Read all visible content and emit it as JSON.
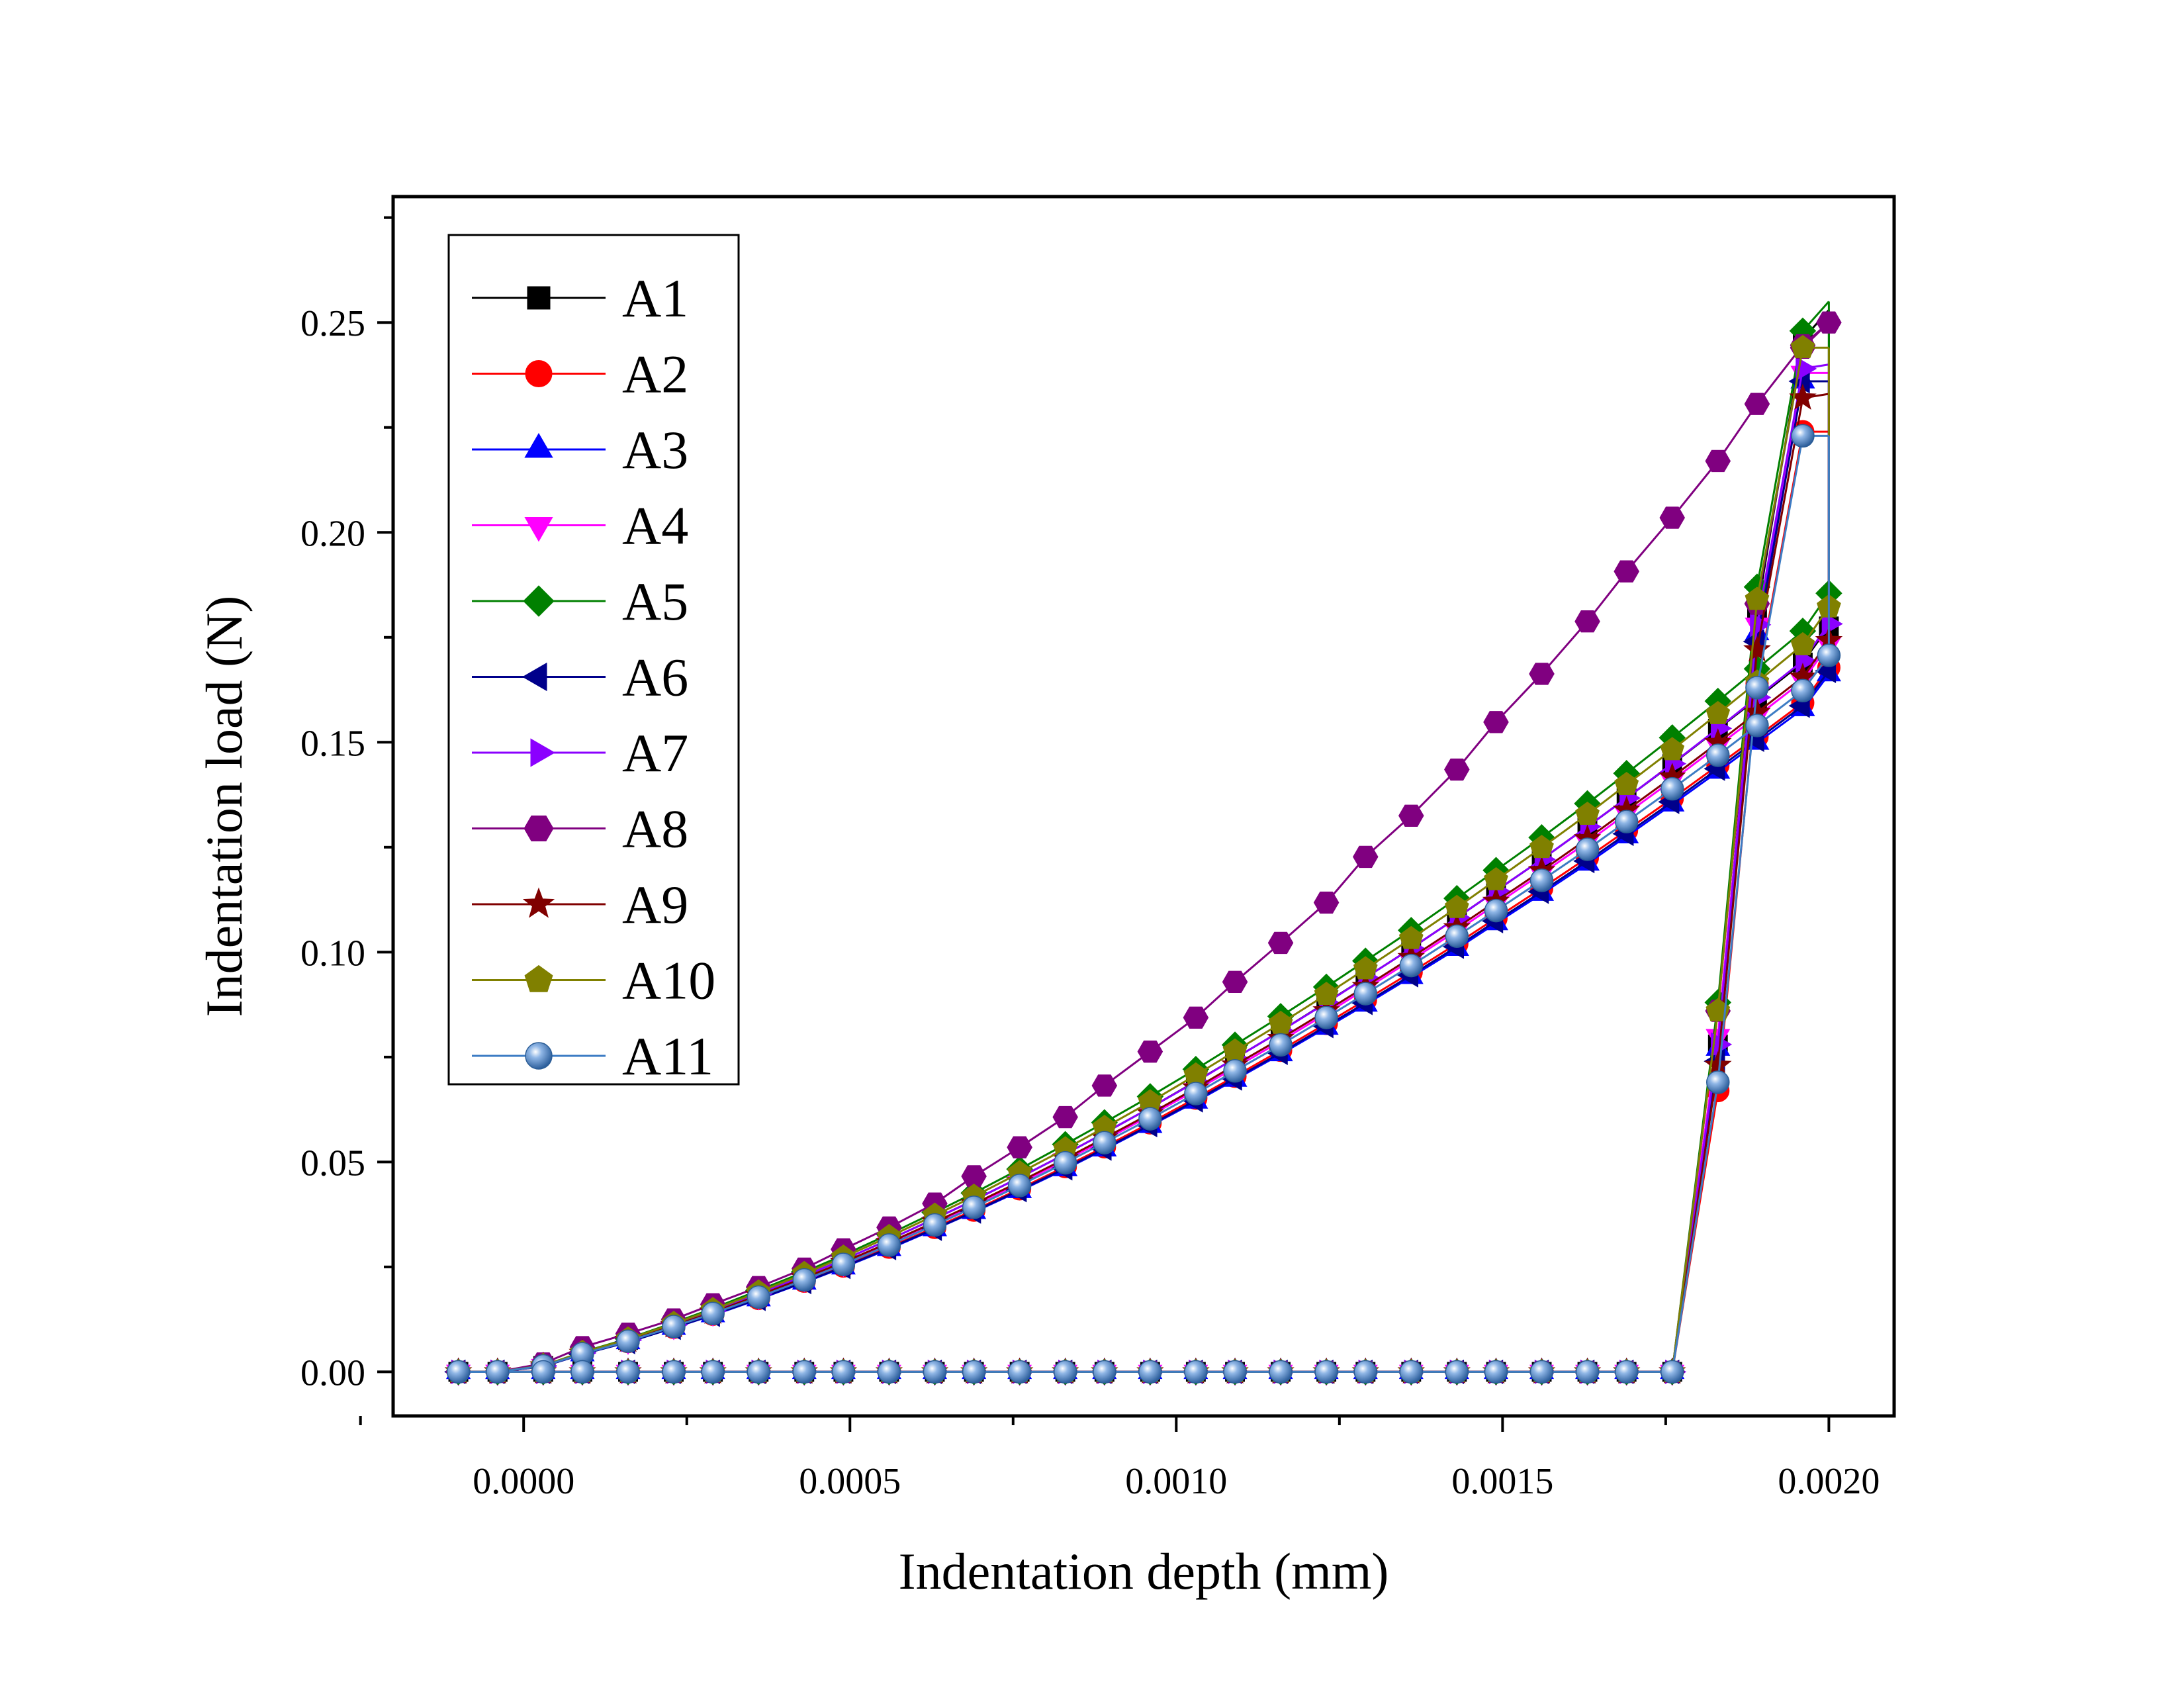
{
  "chart_data": {
    "type": "line",
    "xlabel": "Indentation depth (mm)",
    "ylabel": "Indentation load (N)",
    "xlim": [
      -0.0002,
      0.0021
    ],
    "ylim": [
      -0.0105,
      0.28
    ],
    "xticks": [
      0.0,
      0.0005,
      0.001,
      0.0015,
      0.002
    ],
    "xtick_labels": [
      "0.0000",
      "0.0005",
      "0.0010",
      "0.0015",
      "0.0020"
    ],
    "yticks": [
      0.0,
      0.05,
      0.1,
      0.15,
      0.2,
      0.25
    ],
    "ytick_labels": [
      "0.00",
      "0.05",
      "0.10",
      "0.15",
      "0.20",
      "0.25"
    ],
    "grid": false,
    "legend_position": "top-left",
    "loading_x": [
      -0.0001,
      -4e-05,
      3e-05,
      9e-05,
      0.00016,
      0.00023,
      0.00029,
      0.00036,
      0.00043,
      0.00049,
      0.00056,
      0.00063,
      0.00069,
      0.00076,
      0.00083,
      0.00089,
      0.00096,
      0.00103,
      0.00109,
      0.00116,
      0.00123,
      0.00129,
      0.00136,
      0.00143,
      0.00149,
      0.00156,
      0.00163,
      0.00169,
      0.00176,
      0.00183,
      0.00189,
      0.00196,
      0.002
    ],
    "series": [
      {
        "name": "A1",
        "color": "#000000",
        "marker": "square",
        "peak_load": 0.253,
        "loading_y": [
          0,
          0,
          0.0014,
          0.0045,
          0.0076,
          0.0113,
          0.0145,
          0.0186,
          0.0229,
          0.0267,
          0.0315,
          0.0365,
          0.0409,
          0.0463,
          0.0519,
          0.0569,
          0.0629,
          0.0692,
          0.0747,
          0.0812,
          0.088,
          0.0939,
          0.1009,
          0.1082,
          0.1146,
          0.1221,
          0.1299,
          0.1367,
          0.1448,
          0.1532,
          0.1604,
          0.169,
          0.1776
        ],
        "unloading_y": [
          0,
          0,
          0,
          0,
          0,
          0,
          0,
          0,
          0,
          0,
          0,
          0,
          0,
          0,
          0,
          0,
          0,
          0,
          0,
          0,
          0,
          0,
          0,
          0,
          0,
          0,
          0,
          0,
          0,
          0.078,
          0.181,
          0.246
        ]
      },
      {
        "name": "A2",
        "color": "#ff0000",
        "marker": "circle",
        "peak_load": 0.224,
        "loading_y": [
          0,
          0,
          0.0013,
          0.0043,
          0.0072,
          0.0106,
          0.0137,
          0.0175,
          0.0216,
          0.0252,
          0.0297,
          0.0344,
          0.0385,
          0.0436,
          0.0489,
          0.0536,
          0.0593,
          0.0652,
          0.0704,
          0.0766,
          0.083,
          0.0886,
          0.0952,
          0.102,
          0.1081,
          0.1152,
          0.1225,
          0.129,
          0.1366,
          0.1445,
          0.1513,
          0.1594,
          0.1678
        ],
        "unloading_y": [
          0,
          0,
          0,
          0,
          0,
          0,
          0,
          0,
          0,
          0,
          0,
          0,
          0,
          0,
          0,
          0,
          0,
          0,
          0,
          0,
          0,
          0,
          0,
          0,
          0,
          0,
          0,
          0,
          0,
          0.067,
          0.164,
          0.224
        ]
      },
      {
        "name": "A3",
        "color": "#0000ff",
        "marker": "triangle-up",
        "peak_load": 0.236,
        "loading_y": [
          0,
          0,
          0.0013,
          0.0042,
          0.0071,
          0.0105,
          0.0135,
          0.0173,
          0.0213,
          0.0249,
          0.0293,
          0.034,
          0.0381,
          0.0431,
          0.0483,
          0.053,
          0.0586,
          0.0644,
          0.0696,
          0.0757,
          0.082,
          0.0875,
          0.0941,
          0.1008,
          0.1069,
          0.1139,
          0.1211,
          0.1276,
          0.1352,
          0.143,
          0.1499,
          0.1579,
          0.1662
        ],
        "unloading_y": [
          0,
          0,
          0,
          0,
          0,
          0,
          0,
          0,
          0,
          0,
          0,
          0,
          0,
          0,
          0,
          0,
          0,
          0,
          0,
          0,
          0,
          0,
          0,
          0,
          0,
          0,
          0,
          0,
          0,
          0.077,
          0.176,
          0.236
        ]
      },
      {
        "name": "A4",
        "color": "#ff00ff",
        "marker": "triangle-down",
        "peak_load": 0.238,
        "loading_y": [
          0,
          0,
          0.0014,
          0.0044,
          0.0074,
          0.0109,
          0.0141,
          0.018,
          0.0222,
          0.0259,
          0.0306,
          0.0354,
          0.0397,
          0.0449,
          0.0504,
          0.0552,
          0.0611,
          0.0671,
          0.0725,
          0.0788,
          0.0854,
          0.0912,
          0.0981,
          0.1051,
          0.1114,
          0.1187,
          0.1262,
          0.133,
          0.1409,
          0.1491,
          0.1562,
          0.1646,
          0.1733
        ],
        "unloading_y": [
          0,
          0,
          0,
          0,
          0,
          0,
          0,
          0,
          0,
          0,
          0,
          0,
          0,
          0,
          0,
          0,
          0,
          0,
          0,
          0,
          0,
          0,
          0,
          0,
          0,
          0,
          0,
          0,
          0,
          0.08,
          0.178,
          0.238
        ]
      },
      {
        "name": "A5",
        "color": "#008000",
        "marker": "diamond",
        "peak_load": 0.255,
        "loading_y": [
          0,
          0,
          0.0015,
          0.0047,
          0.0079,
          0.0117,
          0.0151,
          0.0194,
          0.0238,
          0.0278,
          0.0328,
          0.038,
          0.0426,
          0.0483,
          0.0542,
          0.0594,
          0.0656,
          0.0721,
          0.0779,
          0.0847,
          0.0917,
          0.0979,
          0.1052,
          0.1128,
          0.1195,
          0.1273,
          0.1354,
          0.1426,
          0.1511,
          0.1598,
          0.1675,
          0.1765,
          0.1855
        ],
        "unloading_y": [
          0,
          0,
          0,
          0,
          0,
          0,
          0,
          0,
          0,
          0,
          0,
          0,
          0,
          0,
          0,
          0,
          0,
          0,
          0,
          0,
          0,
          0,
          0,
          0,
          0,
          0,
          0,
          0,
          0,
          0.088,
          0.187,
          0.248
        ]
      },
      {
        "name": "A6",
        "color": "#00008b",
        "marker": "triangle-left",
        "peak_load": 0.236,
        "loading_y": [
          0,
          0,
          0.0013,
          0.0042,
          0.0071,
          0.0105,
          0.0136,
          0.0174,
          0.0214,
          0.025,
          0.0295,
          0.0341,
          0.0382,
          0.0433,
          0.0485,
          0.0532,
          0.0588,
          0.0647,
          0.0699,
          0.076,
          0.0824,
          0.0879,
          0.0945,
          0.1013,
          0.1074,
          0.1144,
          0.1217,
          0.1282,
          0.1358,
          0.1437,
          0.1506,
          0.1587,
          0.167
        ],
        "unloading_y": [
          0,
          0,
          0,
          0,
          0,
          0,
          0,
          0,
          0,
          0,
          0,
          0,
          0,
          0,
          0,
          0,
          0,
          0,
          0,
          0,
          0,
          0,
          0,
          0,
          0,
          0,
          0,
          0,
          0,
          0.074,
          0.174,
          0.236
        ]
      },
      {
        "name": "A7",
        "color": "#8b00ff",
        "marker": "triangle-right",
        "peak_load": 0.24,
        "loading_y": [
          0,
          0,
          0.0014,
          0.0045,
          0.0076,
          0.0112,
          0.0145,
          0.0186,
          0.0229,
          0.0267,
          0.0315,
          0.0365,
          0.0409,
          0.0463,
          0.0519,
          0.0569,
          0.0629,
          0.0691,
          0.0747,
          0.0812,
          0.0879,
          0.0939,
          0.1009,
          0.1082,
          0.1146,
          0.1221,
          0.1299,
          0.1367,
          0.1449,
          0.1533,
          0.1607,
          0.1694,
          0.1782
        ],
        "unloading_y": [
          0,
          0,
          0,
          0,
          0,
          0,
          0,
          0,
          0,
          0,
          0,
          0,
          0,
          0,
          0,
          0,
          0,
          0,
          0,
          0,
          0,
          0,
          0,
          0,
          0,
          0,
          0,
          0,
          0,
          0.078,
          0.178,
          0.239
        ]
      },
      {
        "name": "A8",
        "color": "#800080",
        "marker": "hexagon",
        "peak_load": 0.25,
        "loading_y": [
          0,
          0,
          0.002,
          0.0059,
          0.0091,
          0.0125,
          0.0161,
          0.0202,
          0.0246,
          0.0292,
          0.0344,
          0.0401,
          0.0466,
          0.0535,
          0.0607,
          0.0682,
          0.0763,
          0.0844,
          0.0929,
          0.1022,
          0.1118,
          0.1227,
          0.1325,
          0.1435,
          0.1548,
          0.1663,
          0.1788,
          0.1907,
          0.2035,
          0.217,
          0.2306,
          0.2446,
          0.25
        ],
        "unloading_y": [
          0,
          0,
          0,
          0,
          0,
          0,
          0,
          0,
          0,
          0,
          0,
          0,
          0,
          0,
          0,
          0,
          0,
          0,
          0,
          0,
          0,
          0,
          0,
          0,
          0,
          0,
          0,
          0,
          0,
          0.086,
          0.183,
          0.244
        ]
      },
      {
        "name": "A9",
        "color": "#800000",
        "marker": "star",
        "peak_load": 0.233,
        "loading_y": [
          0,
          0,
          0.0014,
          0.0044,
          0.0075,
          0.011,
          0.0142,
          0.0182,
          0.0224,
          0.0261,
          0.0308,
          0.0357,
          0.04,
          0.0453,
          0.0508,
          0.0557,
          0.0615,
          0.0676,
          0.0731,
          0.0794,
          0.086,
          0.0918,
          0.0987,
          0.1058,
          0.1121,
          0.1194,
          0.127,
          0.1338,
          0.1417,
          0.1499,
          0.1571,
          0.1655,
          0.1742
        ],
        "unloading_y": [
          0,
          0,
          0,
          0,
          0,
          0,
          0,
          0,
          0,
          0,
          0,
          0,
          0,
          0,
          0,
          0,
          0,
          0,
          0,
          0,
          0,
          0,
          0,
          0,
          0,
          0,
          0,
          0,
          0,
          0.073,
          0.172,
          0.232
        ]
      },
      {
        "name": "A10",
        "color": "#808000",
        "marker": "pentagon",
        "peak_load": 0.244,
        "loading_y": [
          0,
          0,
          0.0015,
          0.0046,
          0.0078,
          0.0115,
          0.0148,
          0.019,
          0.0234,
          0.0273,
          0.0322,
          0.0373,
          0.0418,
          0.0474,
          0.0531,
          0.0582,
          0.0643,
          0.0707,
          0.0764,
          0.083,
          0.0899,
          0.096,
          0.1032,
          0.1106,
          0.1172,
          0.1249,
          0.1328,
          0.1399,
          0.1482,
          0.1568,
          0.1643,
          0.1732,
          0.1822
        ],
        "unloading_y": [
          0,
          0,
          0,
          0,
          0,
          0,
          0,
          0,
          0,
          0,
          0,
          0,
          0,
          0,
          0,
          0,
          0,
          0,
          0,
          0,
          0,
          0,
          0,
          0,
          0,
          0,
          0,
          0,
          0,
          0.086,
          0.184,
          0.244
        ]
      },
      {
        "name": "A11",
        "color": "#3d7cc4",
        "marker": "sphere",
        "peak_load": 0.223,
        "loading_y": [
          0,
          0,
          0.0014,
          0.0043,
          0.0073,
          0.0108,
          0.0139,
          0.0178,
          0.0219,
          0.0256,
          0.0302,
          0.035,
          0.0392,
          0.0444,
          0.0498,
          0.0546,
          0.0603,
          0.0663,
          0.0717,
          0.0779,
          0.0844,
          0.0901,
          0.0968,
          0.1038,
          0.1099,
          0.1171,
          0.1245,
          0.1311,
          0.1389,
          0.1469,
          0.154,
          0.1623,
          0.1707
        ],
        "unloading_y": [
          0,
          0,
          0,
          0,
          0,
          0,
          0,
          0,
          0,
          0,
          0,
          0,
          0,
          0,
          0,
          0,
          0,
          0,
          0,
          0,
          0,
          0,
          0,
          0,
          0,
          0,
          0,
          0,
          0,
          0.069,
          0.163,
          0.223
        ]
      }
    ]
  }
}
